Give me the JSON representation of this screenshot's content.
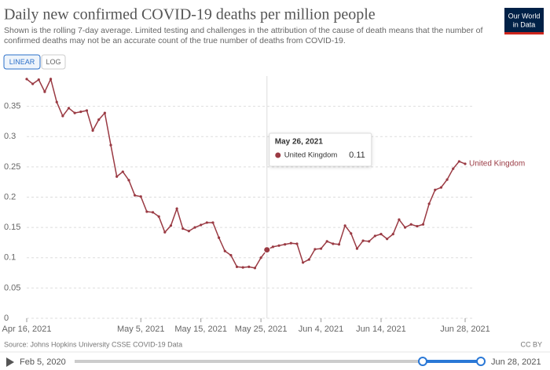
{
  "title": "Daily new confirmed COVID-19 deaths per million people",
  "subtitle_lines": [
    "Shown is the rolling 7-day average. Limited testing and challenges in the attribution of the cause of death means that the number of",
    "confirmed deaths may not be an accurate count of the true number of deaths from COVID-19."
  ],
  "buttons": [
    "LINEAR",
    "LOG"
  ],
  "logo_lines": [
    "Our World",
    "in Data"
  ],
  "source": "Source: Johns Hopkins University CSSE COVID-19 Data",
  "license": "CC BY",
  "timeline": {
    "start": "Feb 5, 2020",
    "end": "Jun 28, 2021"
  },
  "tooltip": {
    "date": "May 26, 2021",
    "series": "United Kingdom",
    "value": 0.11
  },
  "chart_data": {
    "type": "line",
    "x": [
      "2021-04-16",
      "2021-04-17",
      "2021-04-18",
      "2021-04-19",
      "2021-04-20",
      "2021-04-21",
      "2021-04-22",
      "2021-04-23",
      "2021-04-24",
      "2021-04-25",
      "2021-04-26",
      "2021-04-27",
      "2021-04-28",
      "2021-04-29",
      "2021-04-30",
      "2021-05-01",
      "2021-05-02",
      "2021-05-03",
      "2021-05-04",
      "2021-05-05",
      "2021-05-06",
      "2021-05-07",
      "2021-05-08",
      "2021-05-09",
      "2021-05-10",
      "2021-05-11",
      "2021-05-12",
      "2021-05-13",
      "2021-05-14",
      "2021-05-15",
      "2021-05-16",
      "2021-05-17",
      "2021-05-18",
      "2021-05-19",
      "2021-05-20",
      "2021-05-21",
      "2021-05-22",
      "2021-05-23",
      "2021-05-24",
      "2021-05-25",
      "2021-05-26",
      "2021-05-27",
      "2021-05-28",
      "2021-05-29",
      "2021-05-30",
      "2021-05-31",
      "2021-06-01",
      "2021-06-02",
      "2021-06-03",
      "2021-06-04",
      "2021-06-05",
      "2021-06-06",
      "2021-06-07",
      "2021-06-08",
      "2021-06-09",
      "2021-06-10",
      "2021-06-11",
      "2021-06-12",
      "2021-06-13",
      "2021-06-14",
      "2021-06-15",
      "2021-06-16",
      "2021-06-17",
      "2021-06-18",
      "2021-06-19",
      "2021-06-20",
      "2021-06-21",
      "2021-06-22",
      "2021-06-23",
      "2021-06-24",
      "2021-06-25",
      "2021-06-26",
      "2021-06-27",
      "2021-06-28"
    ],
    "series": [
      {
        "name": "United Kingdom",
        "color": "#9a3a43",
        "values": [
          0.395,
          0.387,
          0.394,
          0.374,
          0.395,
          0.357,
          0.334,
          0.347,
          0.339,
          0.341,
          0.343,
          0.31,
          0.328,
          0.339,
          0.286,
          0.234,
          0.242,
          0.228,
          0.203,
          0.201,
          0.176,
          0.175,
          0.168,
          0.142,
          0.153,
          0.181,
          0.148,
          0.144,
          0.15,
          0.154,
          0.158,
          0.158,
          0.133,
          0.111,
          0.104,
          0.085,
          0.084,
          0.085,
          0.083,
          0.1,
          0.113,
          0.118,
          0.12,
          0.122,
          0.124,
          0.123,
          0.092,
          0.097,
          0.114,
          0.115,
          0.127,
          0.123,
          0.122,
          0.153,
          0.14,
          0.115,
          0.128,
          0.127,
          0.136,
          0.139,
          0.131,
          0.139,
          0.163,
          0.15,
          0.155,
          0.152,
          0.155,
          0.189,
          0.212,
          0.216,
          0.229,
          0.247,
          0.259,
          0.255
        ]
      }
    ],
    "xlim": [
      "2021-04-16",
      "2021-06-28"
    ],
    "xticks": [
      {
        "value": "2021-04-16",
        "label": "Apr 16, 2021"
      },
      {
        "value": "2021-05-05",
        "label": "May 5, 2021"
      },
      {
        "value": "2021-05-15",
        "label": "May 15, 2021"
      },
      {
        "value": "2021-05-25",
        "label": "May 25, 2021"
      },
      {
        "value": "2021-06-04",
        "label": "Jun 4, 2021"
      },
      {
        "value": "2021-06-14",
        "label": "Jun 14, 2021"
      },
      {
        "value": "2021-06-28",
        "label": "Jun 28, 2021"
      }
    ],
    "ylim": [
      0,
      0.4
    ],
    "yticks": [
      0,
      0.05,
      0.1,
      0.15,
      0.2,
      0.25,
      0.3,
      0.35
    ],
    "grid": true
  }
}
